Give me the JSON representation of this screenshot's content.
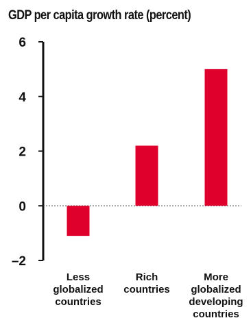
{
  "chart_data": {
    "type": "bar",
    "title": "GDP per capita growth rate (percent)",
    "categories": [
      "Less globalized countries",
      "Rich countries",
      "More globalized developing countries"
    ],
    "category_label_lines": [
      [
        "Less",
        "globalized",
        "countries"
      ],
      [
        "Rich",
        "countries"
      ],
      [
        "More",
        "globalized",
        "developing",
        "countries"
      ]
    ],
    "values": [
      -1.1,
      2.2,
      5.0
    ],
    "yticks": [
      "6",
      "4",
      "2",
      "0",
      "–2"
    ],
    "ytick_values": [
      6,
      4,
      2,
      0,
      -2
    ],
    "ylim": [
      -2,
      6
    ],
    "xlabel": "",
    "ylabel": "",
    "grid": false,
    "zero_line": "dotted",
    "bar_color": "#e0002c"
  }
}
